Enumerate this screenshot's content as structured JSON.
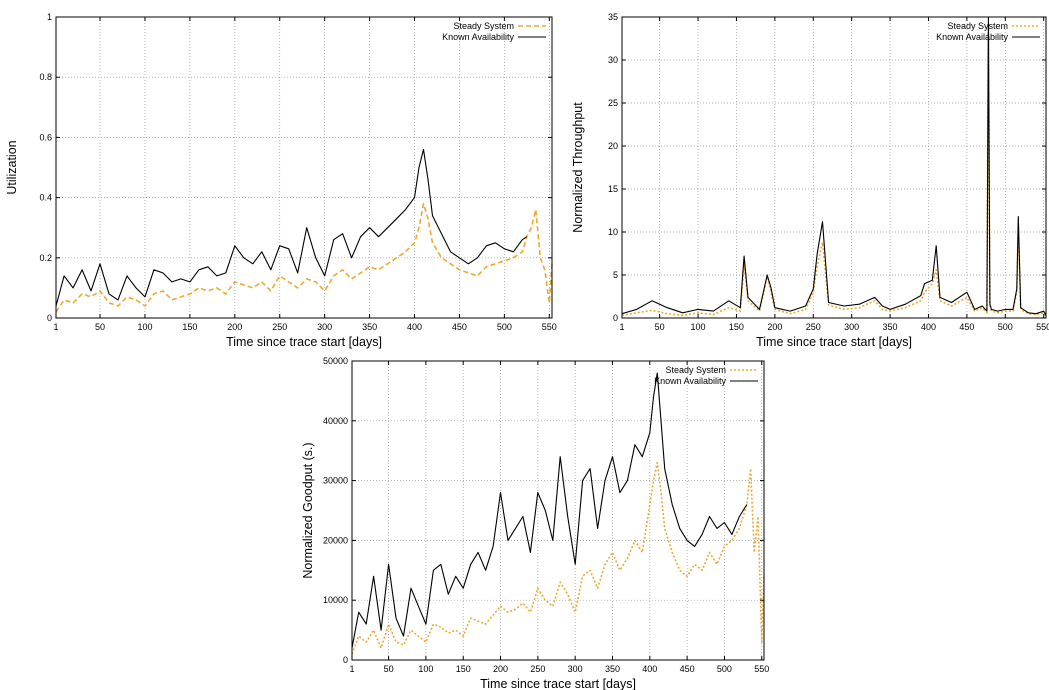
{
  "figure": {
    "background": "#ffffff"
  },
  "chart_data": [
    {
      "type": "line",
      "xlabel": "Time since trace start [days]",
      "ylabel": "Utilization",
      "xlim": [
        1,
        553
      ],
      "ylim": [
        0,
        1
      ],
      "xticks": [
        1,
        50,
        100,
        150,
        200,
        250,
        300,
        350,
        400,
        450,
        500,
        550
      ],
      "yticks": [
        0,
        0.2,
        0.4,
        0.6,
        0.8,
        1
      ],
      "grid": true,
      "legend_position": "top-right",
      "series": [
        {
          "name": "Steady System",
          "color": "#f0a830",
          "dash": "dashed",
          "x": [
            1,
            10,
            20,
            30,
            40,
            50,
            60,
            70,
            80,
            90,
            100,
            110,
            120,
            130,
            140,
            150,
            160,
            170,
            180,
            190,
            200,
            210,
            220,
            230,
            240,
            250,
            260,
            270,
            280,
            290,
            300,
            310,
            320,
            330,
            340,
            350,
            360,
            370,
            380,
            390,
            400,
            405,
            410,
            415,
            420,
            430,
            440,
            450,
            460,
            470,
            480,
            490,
            500,
            510,
            520,
            525,
            530,
            535,
            540,
            545,
            550,
            553
          ],
          "y": [
            0.02,
            0.06,
            0.05,
            0.08,
            0.07,
            0.09,
            0.05,
            0.04,
            0.07,
            0.06,
            0.04,
            0.08,
            0.09,
            0.06,
            0.07,
            0.08,
            0.1,
            0.09,
            0.1,
            0.08,
            0.12,
            0.11,
            0.1,
            0.12,
            0.09,
            0.14,
            0.12,
            0.1,
            0.13,
            0.12,
            0.09,
            0.14,
            0.16,
            0.13,
            0.15,
            0.17,
            0.16,
            0.18,
            0.2,
            0.22,
            0.25,
            0.3,
            0.38,
            0.33,
            0.25,
            0.2,
            0.18,
            0.16,
            0.15,
            0.14,
            0.17,
            0.18,
            0.19,
            0.2,
            0.22,
            0.27,
            0.3,
            0.36,
            0.2,
            0.16,
            0.05,
            0.18
          ]
        },
        {
          "name": "Known Availability",
          "color": "#000000",
          "dash": "solid",
          "x": [
            1,
            10,
            20,
            30,
            40,
            50,
            60,
            70,
            80,
            90,
            100,
            110,
            120,
            130,
            140,
            150,
            160,
            170,
            180,
            190,
            200,
            210,
            220,
            230,
            240,
            250,
            260,
            270,
            280,
            290,
            300,
            310,
            320,
            330,
            340,
            350,
            360,
            370,
            380,
            390,
            400,
            405,
            410,
            415,
            420,
            430,
            440,
            450,
            460,
            470,
            480,
            490,
            500,
            510,
            520,
            525
          ],
          "y": [
            0.04,
            0.14,
            0.1,
            0.16,
            0.09,
            0.18,
            0.08,
            0.06,
            0.14,
            0.1,
            0.07,
            0.16,
            0.15,
            0.12,
            0.13,
            0.12,
            0.16,
            0.17,
            0.14,
            0.15,
            0.24,
            0.2,
            0.18,
            0.22,
            0.16,
            0.24,
            0.23,
            0.15,
            0.3,
            0.2,
            0.14,
            0.26,
            0.28,
            0.2,
            0.27,
            0.3,
            0.27,
            0.3,
            0.33,
            0.36,
            0.4,
            0.5,
            0.56,
            0.46,
            0.34,
            0.28,
            0.22,
            0.2,
            0.18,
            0.2,
            0.24,
            0.25,
            0.23,
            0.22,
            0.26,
            0.27
          ]
        }
      ]
    },
    {
      "type": "line",
      "xlabel": "Time since trace start [days]",
      "ylabel": "Normalized Throughput",
      "xlim": [
        1,
        553
      ],
      "ylim": [
        0,
        35
      ],
      "xticks": [
        1,
        50,
        100,
        150,
        200,
        250,
        300,
        350,
        400,
        450,
        500,
        550
      ],
      "yticks": [
        0,
        5,
        10,
        15,
        20,
        25,
        30,
        35
      ],
      "grid": true,
      "legend_position": "top-right",
      "series": [
        {
          "name": "Steady System",
          "color": "#f0a830",
          "dash": "dotted",
          "x": [
            1,
            20,
            40,
            60,
            80,
            100,
            120,
            140,
            155,
            160,
            165,
            180,
            190,
            195,
            200,
            220,
            240,
            250,
            255,
            262,
            270,
            290,
            310,
            330,
            340,
            350,
            370,
            390,
            395,
            405,
            410,
            415,
            430,
            450,
            460,
            470,
            476,
            478,
            480,
            482,
            490,
            500,
            510,
            515,
            517,
            520,
            530,
            540,
            550,
            553
          ],
          "y": [
            0.3,
            0.6,
            0.9,
            0.5,
            0.3,
            0.6,
            0.4,
            1.2,
            0.8,
            6.2,
            2,
            0.8,
            4.8,
            3,
            1,
            0.5,
            1,
            3,
            6,
            8.8,
            1.5,
            1,
            1.2,
            2,
            1,
            0.8,
            1.2,
            2,
            3,
            4,
            5.6,
            2,
            1.4,
            2.4,
            0.8,
            1.2,
            0.6,
            34,
            1.4,
            0.8,
            0.6,
            0.8,
            0.8,
            3,
            11,
            1,
            0.5,
            0.4,
            0.6,
            0.2
          ]
        },
        {
          "name": "Known Availability",
          "color": "#000000",
          "dash": "solid",
          "x": [
            1,
            20,
            40,
            60,
            80,
            100,
            120,
            140,
            155,
            160,
            165,
            180,
            190,
            195,
            200,
            220,
            240,
            250,
            255,
            262,
            270,
            290,
            310,
            330,
            340,
            350,
            370,
            390,
            395,
            405,
            410,
            415,
            430,
            450,
            460,
            470,
            476,
            478,
            480,
            482,
            490,
            500,
            510,
            515,
            517,
            520,
            530,
            540,
            550,
            553
          ],
          "y": [
            0.5,
            1,
            2,
            1.2,
            0.6,
            1,
            0.8,
            2,
            1.2,
            7.2,
            2.4,
            1,
            5,
            3.5,
            1.2,
            0.8,
            1.4,
            3.4,
            7.4,
            11.2,
            1.8,
            1.4,
            1.6,
            2.4,
            1.4,
            1,
            1.6,
            2.6,
            4,
            4.4,
            8.4,
            2.4,
            1.8,
            3,
            1,
            1.4,
            0.8,
            35,
            1.6,
            1,
            0.8,
            1,
            1,
            3.4,
            11.8,
            1.2,
            0.6,
            0.5,
            0.8,
            0.3
          ]
        }
      ]
    },
    {
      "type": "line",
      "xlabel": "Time since trace start [days]",
      "ylabel": "Normalized Goodput (s.)",
      "xlim": [
        1,
        553
      ],
      "ylim": [
        0,
        50000
      ],
      "xticks": [
        1,
        50,
        100,
        150,
        200,
        250,
        300,
        350,
        400,
        450,
        500,
        550
      ],
      "yticks": [
        0,
        10000,
        20000,
        30000,
        40000,
        50000
      ],
      "grid": true,
      "legend_position": "top-right",
      "series": [
        {
          "name": "Steady System",
          "color": "#f0a830",
          "dash": "dotted",
          "x": [
            1,
            10,
            20,
            30,
            40,
            50,
            60,
            70,
            80,
            90,
            100,
            110,
            120,
            130,
            140,
            150,
            160,
            170,
            180,
            190,
            200,
            210,
            220,
            230,
            240,
            250,
            260,
            270,
            280,
            290,
            300,
            310,
            320,
            330,
            340,
            350,
            360,
            370,
            380,
            390,
            400,
            405,
            410,
            415,
            420,
            430,
            440,
            450,
            460,
            470,
            480,
            490,
            500,
            510,
            520,
            530,
            535,
            540,
            545,
            550,
            553
          ],
          "y": [
            1000,
            4000,
            3000,
            5000,
            2000,
            6000,
            3000,
            2500,
            5000,
            4000,
            3000,
            6000,
            5500,
            4500,
            5000,
            4000,
            7000,
            6500,
            6000,
            7500,
            9000,
            8000,
            8500,
            9500,
            8000,
            12000,
            10000,
            9000,
            13000,
            11000,
            8000,
            14000,
            15000,
            12000,
            16000,
            18000,
            15000,
            17000,
            20000,
            18000,
            26000,
            30000,
            33000,
            28000,
            22000,
            18000,
            15000,
            14000,
            16000,
            15000,
            18000,
            16000,
            19000,
            20000,
            22000,
            26000,
            32000,
            18000,
            24000,
            3000,
            14000
          ]
        },
        {
          "name": "Known Availability",
          "color": "#000000",
          "dash": "solid",
          "x": [
            1,
            10,
            20,
            30,
            40,
            50,
            60,
            70,
            80,
            90,
            100,
            110,
            120,
            130,
            140,
            150,
            160,
            170,
            180,
            190,
            200,
            210,
            220,
            230,
            240,
            250,
            260,
            270,
            280,
            290,
            300,
            310,
            320,
            330,
            340,
            350,
            360,
            370,
            380,
            390,
            400,
            405,
            410,
            415,
            420,
            430,
            440,
            450,
            460,
            470,
            480,
            490,
            500,
            510,
            520,
            530
          ],
          "y": [
            2000,
            8000,
            6000,
            14000,
            5000,
            16000,
            7000,
            4000,
            12000,
            9000,
            6000,
            15000,
            16000,
            11000,
            14000,
            12000,
            16000,
            18000,
            15000,
            19000,
            28000,
            20000,
            22000,
            24000,
            18000,
            28000,
            25000,
            20000,
            34000,
            24000,
            16000,
            30000,
            32000,
            22000,
            30000,
            34000,
            28000,
            30000,
            36000,
            34000,
            38000,
            44000,
            48000,
            40000,
            32000,
            26000,
            22000,
            20000,
            19000,
            21000,
            24000,
            22000,
            23000,
            21000,
            24000,
            26000
          ]
        }
      ]
    }
  ]
}
